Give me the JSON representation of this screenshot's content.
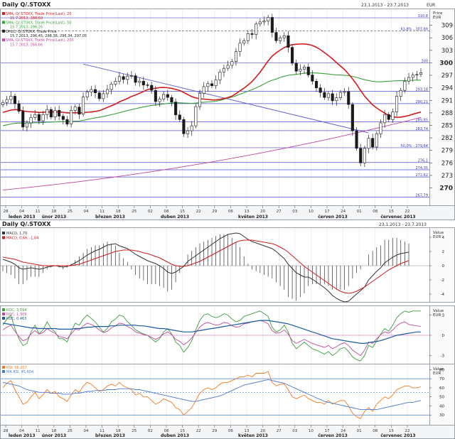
{
  "main": {
    "title": "Daily Q/.STOXX",
    "date_range": "23.1.2013 - 23.7.2013",
    "currency": "EUR",
    "price_label": "Price",
    "price_unit": "EUR",
    "legend": [
      {
        "text": "SMA, Q/.STOXX, Trade Price(Last), 20",
        "color": "#d01c1c"
      },
      {
        "text": "15.7.2013, 288,69",
        "color": "#d01c1c"
      },
      {
        "text": "SMA, Q/.STOXX, Trade Price(Last), 50",
        "color": "#3aa03a"
      },
      {
        "text": "15.7.2013, 296,26",
        "color": "#3aa03a"
      },
      {
        "text": "OHLC, Q/.STOXX, Trade Price",
        "color": "#222222"
      },
      {
        "text": "15.7.2013, 296,45, 298,38, 296,34, 297,05",
        "color": "#222222"
      },
      {
        "text": "SMA, Q/.STOXX, Trade Price(Last), 200",
        "color": "#c04aa0"
      },
      {
        "text": "15.7.2013, 266,66",
        "color": "#c04aa0"
      }
    ]
  },
  "x_axis": {
    "day_ticks": [
      "28",
      "04",
      "11",
      "18",
      "25",
      "04",
      "11",
      "18",
      "25",
      "02",
      "08",
      "15",
      "22",
      "29",
      "06",
      "13",
      "20",
      "27",
      "03",
      "10",
      "17",
      "24",
      "01",
      "08",
      "15",
      "22"
    ],
    "month_labels": [
      "leden 2013",
      "únor 2013",
      "březen 2013",
      "duben 2013",
      "květen 2013",
      "červen 2013",
      "červenec 2013"
    ]
  },
  "macd_panel": {
    "title": "Daily Q/.STOXX",
    "date_range": "23.1.2013 - 23.7.2013",
    "legend": [
      {
        "text": "MACD, 1,70",
        "color": "#333333"
      },
      {
        "text": "MACD, 0,66, -1,04",
        "color": "#d01c1c"
      }
    ],
    "unit_label": "Value",
    "unit": "EUR"
  },
  "roc_panel": {
    "legend": [
      {
        "text": "ROC, 3,594",
        "color": "#3aa03a"
      },
      {
        "text": "ROC, 1,309",
        "color": "#c04aa0"
      },
      {
        "text": "ROC, 0,463",
        "color": "#1c5aa0"
      }
    ],
    "unit_label": "Value",
    "unit": "EUR"
  },
  "rsi_panel": {
    "legend": [
      {
        "text": "RSI, 56,207",
        "color": "#f07a20"
      },
      {
        "text": "MA RSI, 45,604",
        "color": "#4a7ad0"
      }
    ],
    "unit_label": "Value",
    "unit": "EUR"
  },
  "chart_data": [
    {
      "type": "candlestick",
      "title": "Daily Q/.STOXX",
      "x_range": [
        "28.1.2013",
        "22.7.2013"
      ],
      "ylim": [
        266,
        312
      ],
      "y_ticks": [
        270,
        273,
        276,
        279,
        282,
        285,
        288,
        291,
        294,
        297,
        300,
        303,
        306,
        309
      ],
      "horizontal_levels": [
        {
          "label": "310,8",
          "value": 310.8
        },
        {
          "label": "61,8% - 307,69",
          "value": 307.69
        },
        {
          "label": "300",
          "value": 300
        },
        {
          "label": "293,18",
          "value": 293.18
        },
        {
          "label": "290,21",
          "value": 290.21
        },
        {
          "label": "285,85",
          "value": 285.85
        },
        {
          "label": "283,74",
          "value": 283.74
        },
        {
          "label": "50,0% - 279,64",
          "value": 279.64
        },
        {
          "label": "276,1",
          "value": 276.1
        },
        {
          "label": "274,35",
          "value": 274.35
        },
        {
          "label": "272,62",
          "value": 272.62
        },
        {
          "label": "267,79",
          "value": 267.79
        }
      ],
      "close": [
        290.5,
        291.2,
        292.0,
        290.2,
        288.4,
        284.6,
        285.6,
        286.9,
        287.6,
        286.1,
        287.6,
        288.8,
        287.0,
        288.6,
        287.2,
        286.4,
        285.3,
        288.6,
        289.4,
        287.7,
        291.8,
        293.0,
        293.6,
        292.8,
        291.4,
        292.6,
        293.6,
        294.9,
        295.6,
        296.7,
        296.0,
        296.8,
        296.9,
        295.3,
        295.6,
        294.7,
        294.6,
        293.4,
        290.7,
        291.3,
        292.4,
        291.7,
        290.6,
        287.5,
        286.4,
        283.0,
        283.7,
        284.9,
        289.5,
        292.7,
        294.3,
        295.0,
        294.5,
        295.9,
        297.8,
        298.7,
        299.4,
        300.3,
        302.7,
        304.7,
        305.3,
        307.0,
        306.8,
        309.3,
        309.8,
        310.0,
        310.9,
        307.3,
        305.3,
        306.0,
        306.5,
        303.7,
        299.9,
        298.0,
        298.5,
        299.0,
        297.1,
        295.6,
        294.0,
        292.9,
        291.7,
        292.6,
        290.9,
        291.6,
        292.9,
        293.1,
        290.0,
        283.7,
        279.5,
        276.0,
        279.5,
        281.9,
        279.8,
        283.0,
        285.6,
        287.6,
        286.4,
        288.2,
        292.0,
        293.4,
        295.6,
        296.5,
        297.1,
        297.2,
        297.6
      ],
      "ma_series": [
        {
          "name": "SMA 20",
          "period": 20,
          "color": "#d01c1c"
        },
        {
          "name": "SMA 50",
          "period": 50,
          "color": "#3aa03a"
        },
        {
          "name": "SMA 200",
          "color": "#c04aa0",
          "start": 269.5,
          "end": 286.9
        }
      ],
      "trendline": {
        "from": [
          290.9,
          299.7
        ],
        "to": [
          282.0,
          283.2
        ]
      }
    },
    {
      "type": "line",
      "title": "MACD",
      "ylim": [
        -5,
        5
      ],
      "y_ticks": [
        -4,
        -2,
        0,
        2,
        4
      ],
      "series": [
        {
          "name": "MACD",
          "color": "#333333",
          "values": [
            0.9,
            0.7,
            0.5,
            0.2,
            -0.3,
            -0.5,
            -0.4,
            -0.3,
            -0.4,
            -0.5,
            -0.4,
            -0.2,
            -0.1,
            0.0,
            -0.1,
            -0.2,
            -0.1,
            0.1,
            0.4,
            0.7,
            1.1,
            1.5,
            1.8,
            2.1,
            2.3,
            2.6,
            2.9,
            3.0,
            3.1,
            2.8,
            2.6,
            2.4,
            2.0,
            1.6,
            1.3,
            1.0,
            0.7,
            0.5,
            0.3,
            0.0,
            -0.4,
            -0.9,
            -1.1,
            -0.9,
            -0.5,
            -0.1,
            0.6,
            1.0,
            1.4,
            1.8,
            2.2,
            2.6,
            3.0,
            3.4,
            3.8,
            4.1,
            4.4,
            4.5,
            4.6,
            4.5,
            4.1,
            3.7,
            3.4,
            3.2,
            3.0,
            2.8,
            2.6,
            2.4,
            2.0,
            1.5,
            1.0,
            0.2,
            -0.4,
            -1.0,
            -1.3,
            -1.6,
            -1.6,
            -1.9,
            -2.3,
            -2.7,
            -3.1,
            -3.6,
            -4.2,
            -4.6,
            -4.9,
            -5.1,
            -5.0,
            -4.5,
            -4.0,
            -3.5,
            -3.0,
            -2.0,
            -1.4,
            -0.8,
            -0.3,
            0.4,
            0.8,
            1.2,
            1.5,
            1.7,
            1.8,
            1.9
          ]
        },
        {
          "name": "Signal",
          "color": "#d01c1c",
          "values": [
            1.2,
            1.1,
            1.0,
            0.9,
            0.7,
            0.5,
            0.4,
            0.3,
            0.2,
            0.1,
            0.0,
            0.0,
            0.0,
            0.0,
            0.0,
            0.0,
            0.0,
            0.0,
            0.1,
            0.2,
            0.4,
            0.6,
            0.8,
            1.0,
            1.2,
            1.4,
            1.6,
            1.8,
            2.0,
            2.1,
            2.2,
            2.2,
            2.2,
            2.1,
            2.0,
            1.8,
            1.7,
            1.5,
            1.3,
            1.1,
            0.8,
            0.5,
            0.2,
            0.0,
            -0.1,
            -0.1,
            0.0,
            0.2,
            0.4,
            0.6,
            0.9,
            1.2,
            1.5,
            1.8,
            2.1,
            2.4,
            2.7,
            3.0,
            3.3,
            3.5,
            3.6,
            3.6,
            3.6,
            3.5,
            3.4,
            3.3,
            3.2,
            3.1,
            2.9,
            2.6,
            2.3,
            1.9,
            1.4,
            0.9,
            0.4,
            -0.1,
            -0.5,
            -0.9,
            -1.3,
            -1.7,
            -2.1,
            -2.5,
            -2.9,
            -3.3,
            -3.6,
            -3.8,
            -3.9,
            -3.8,
            -3.6,
            -3.3,
            -3.0,
            -2.6,
            -2.2,
            -1.8,
            -1.4,
            -1.0,
            -0.6,
            -0.3,
            0.0,
            0.3,
            0.5,
            0.7
          ]
        }
      ]
    },
    {
      "type": "line",
      "title": "ROC",
      "ylim": [
        -4,
        4
      ],
      "y_ticks": [
        -3,
        0,
        3
      ],
      "series": [
        {
          "name": "ROC 3,594",
          "color": "#3aa03a",
          "values": [
            1.5,
            2.4,
            3.0,
            1.0,
            -0.5,
            -1.5,
            -1.2,
            0.5,
            1.5,
            0.2,
            0.8,
            2.0,
            1.0,
            0.5,
            -0.5,
            -0.5,
            -1.0,
            0.5,
            1.8,
            1.5,
            2.4,
            3.0,
            2.5,
            2.0,
            1.2,
            0.5,
            1.0,
            2.0,
            2.4,
            3.0,
            2.8,
            2.0,
            1.5,
            0.8,
            0.5,
            0.2,
            0.0,
            -0.5,
            -1.0,
            -0.5,
            0.5,
            1.0,
            0.2,
            -1.0,
            -1.5,
            -2.5,
            -1.8,
            -0.8,
            0.8,
            2.2,
            3.0,
            3.2,
            2.8,
            2.6,
            2.8,
            3.2,
            3.0,
            2.4,
            2.0,
            2.2,
            2.8,
            3.0,
            3.2,
            3.4,
            3.6,
            3.2,
            2.8,
            1.2,
            0.5,
            0.8,
            1.5,
            0.5,
            -1.2,
            -2.0,
            -1.5,
            -1.0,
            -1.5,
            -2.0,
            -2.2,
            -2.5,
            -2.8,
            -2.4,
            -3.0,
            -2.6,
            -2.0,
            -1.8,
            -2.4,
            -3.2,
            -3.6,
            -3.8,
            -3.0,
            -1.5,
            -1.8,
            -0.8,
            0.2,
            1.0,
            0.6,
            1.5,
            2.6,
            3.2,
            3.6,
            3.4,
            3.6,
            3.6,
            3.6
          ]
        },
        {
          "name": "ROC 1,309",
          "color": "#c04aa0",
          "values": [
            0.8,
            1.2,
            1.5,
            0.6,
            -0.2,
            -0.8,
            -0.6,
            0.2,
            0.7,
            0.2,
            0.4,
            1.0,
            0.6,
            0.3,
            -0.2,
            -0.3,
            -0.5,
            0.2,
            0.9,
            0.8,
            1.4,
            1.8,
            1.6,
            1.3,
            0.8,
            0.4,
            0.6,
            1.1,
            1.4,
            1.8,
            1.7,
            1.3,
            1.0,
            0.5,
            0.3,
            0.1,
            0.0,
            -0.3,
            -0.6,
            -0.3,
            0.2,
            0.5,
            0.1,
            -0.6,
            -0.9,
            -1.4,
            -1.0,
            -0.4,
            0.4,
            1.2,
            1.7,
            1.9,
            1.7,
            1.5,
            1.6,
            1.9,
            1.8,
            1.4,
            1.2,
            1.3,
            1.7,
            1.8,
            2.0,
            2.1,
            2.2,
            2.0,
            1.7,
            0.7,
            0.3,
            0.4,
            0.8,
            0.2,
            -0.8,
            -1.2,
            -0.9,
            -0.6,
            -0.9,
            -1.2,
            -1.4,
            -1.6,
            -1.8,
            -1.5,
            -2.0,
            -1.7,
            -1.3,
            -1.1,
            -1.5,
            -2.2,
            -2.6,
            -3.0,
            -2.2,
            -1.0,
            -1.2,
            -0.5,
            0.1,
            0.5,
            0.3,
            0.8,
            1.4,
            1.8,
            2.0,
            1.6,
            1.5,
            1.4,
            1.3
          ]
        },
        {
          "name": "ROC 0,463",
          "color": "#1c5aa0",
          "values": [
            1.8,
            1.7,
            1.6,
            1.5,
            1.4,
            1.3,
            1.2,
            1.1,
            1.1,
            1.0,
            1.0,
            1.0,
            1.0,
            1.0,
            0.9,
            0.9,
            0.9,
            0.9,
            1.0,
            1.0,
            1.1,
            1.2,
            1.2,
            1.3,
            1.3,
            1.3,
            1.3,
            1.4,
            1.4,
            1.5,
            1.5,
            1.5,
            1.5,
            1.5,
            1.4,
            1.4,
            1.3,
            1.2,
            1.1,
            1.0,
            1.0,
            0.9,
            0.8,
            0.7,
            0.6,
            0.5,
            0.5,
            0.5,
            0.6,
            0.7,
            0.8,
            0.9,
            1.0,
            1.1,
            1.2,
            1.3,
            1.4,
            1.5,
            1.6,
            1.7,
            1.8,
            1.9,
            2.0,
            2.1,
            2.2,
            2.2,
            2.2,
            2.1,
            2.0,
            1.9,
            1.8,
            1.7,
            1.5,
            1.3,
            1.1,
            0.9,
            0.7,
            0.5,
            0.3,
            0.1,
            -0.1,
            -0.3,
            -0.5,
            -0.6,
            -0.7,
            -0.8,
            -0.9,
            -1.0,
            -1.1,
            -1.2,
            -1.2,
            -1.1,
            -1.0,
            -0.9,
            -0.8,
            -0.6,
            -0.4,
            -0.2,
            0.0,
            0.1,
            0.2,
            0.3,
            0.4,
            0.5,
            0.5
          ]
        }
      ]
    },
    {
      "type": "line",
      "title": "RSI",
      "ylim": [
        20,
        85
      ],
      "y_ticks": [
        30,
        40,
        50,
        60,
        70,
        80
      ],
      "horizontal_levels": [
        {
          "value": 70
        },
        {
          "value": 55
        },
        {
          "value": 30
        }
      ],
      "series": [
        {
          "name": "RSI",
          "color": "#f07a20",
          "values": [
            60,
            65,
            68,
            58,
            50,
            42,
            44,
            50,
            55,
            48,
            52,
            58,
            54,
            56,
            50,
            48,
            45,
            52,
            58,
            55,
            62,
            66,
            64,
            60,
            56,
            58,
            62,
            64,
            62,
            66,
            62,
            60,
            58,
            52,
            54,
            50,
            50,
            46,
            42,
            44,
            48,
            46,
            44,
            38,
            36,
            30,
            34,
            38,
            46,
            54,
            58,
            60,
            58,
            60,
            64,
            66,
            66,
            68,
            70,
            72,
            72,
            74,
            72,
            76,
            76,
            76,
            78,
            66,
            62,
            64,
            64,
            58,
            50,
            48,
            50,
            52,
            48,
            46,
            44,
            44,
            42,
            46,
            42,
            44,
            46,
            46,
            40,
            32,
            28,
            26,
            34,
            38,
            34,
            42,
            46,
            50,
            48,
            52,
            58,
            60,
            62,
            62,
            60,
            60,
            61
          ]
        },
        {
          "name": "MA RSI",
          "color": "#4a7ad0",
          "values": [
            66,
            65,
            64,
            63,
            62,
            60,
            58,
            57,
            56,
            55,
            55,
            55,
            54,
            54,
            54,
            53,
            53,
            53,
            54,
            54,
            55,
            56,
            56,
            57,
            57,
            57,
            58,
            58,
            58,
            59,
            59,
            59,
            59,
            58,
            58,
            57,
            56,
            55,
            54,
            53,
            52,
            51,
            50,
            49,
            48,
            47,
            46,
            45,
            45,
            46,
            47,
            48,
            49,
            50,
            51,
            53,
            55,
            57,
            59,
            61,
            63,
            64,
            65,
            66,
            67,
            68,
            69,
            68,
            67,
            66,
            65,
            63,
            61,
            59,
            57,
            55,
            53,
            51,
            49,
            47,
            45,
            44,
            43,
            42,
            41,
            40,
            39,
            38,
            37,
            36,
            36,
            36,
            36,
            36,
            37,
            38,
            39,
            40,
            41,
            42,
            43,
            44,
            44,
            45,
            46
          ]
        }
      ]
    }
  ]
}
